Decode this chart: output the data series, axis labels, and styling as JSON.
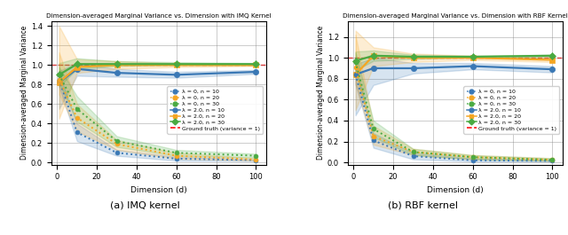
{
  "dims": [
    1,
    10,
    30,
    60,
    100
  ],
  "imq": {
    "title": "Dimension-averaged Marginal Variance vs. Dimension with IMQ Kernel",
    "lambda0_n10_mean": [
      0.85,
      0.31,
      0.1,
      0.04,
      0.025
    ],
    "lambda0_n10_lo": [
      0.78,
      0.22,
      0.07,
      0.02,
      0.015
    ],
    "lambda0_n10_hi": [
      0.92,
      0.4,
      0.13,
      0.06,
      0.035
    ],
    "lambda0_n20_mean": [
      0.85,
      0.46,
      0.19,
      0.07,
      0.03
    ],
    "lambda0_n20_lo": [
      0.7,
      0.32,
      0.13,
      0.04,
      0.02
    ],
    "lambda0_n20_hi": [
      1.13,
      0.6,
      0.23,
      0.1,
      0.045
    ],
    "lambda0_n30_mean": [
      0.9,
      0.55,
      0.22,
      0.1,
      0.07
    ],
    "lambda0_n30_lo": [
      0.82,
      0.42,
      0.16,
      0.07,
      0.05
    ],
    "lambda0_n30_hi": [
      0.98,
      0.68,
      0.27,
      0.13,
      0.09
    ],
    "lambda2_n10_mean": [
      0.82,
      0.96,
      0.92,
      0.9,
      0.93
    ],
    "lambda2_n10_lo": [
      0.55,
      0.89,
      0.88,
      0.87,
      0.91
    ],
    "lambda2_n10_hi": [
      0.94,
      1.02,
      0.96,
      0.93,
      0.95
    ],
    "lambda2_n20_mean": [
      0.82,
      0.98,
      1.0,
      1.0,
      1.0
    ],
    "lambda2_n20_lo": [
      0.45,
      0.92,
      0.96,
      0.98,
      0.99
    ],
    "lambda2_n20_hi": [
      1.4,
      1.06,
      1.04,
      1.02,
      1.01
    ],
    "lambda2_n30_mean": [
      0.9,
      1.01,
      1.01,
      1.01,
      1.01
    ],
    "lambda2_n30_lo": [
      0.78,
      0.96,
      0.99,
      1.0,
      1.0
    ],
    "lambda2_n30_hi": [
      1.02,
      1.07,
      1.04,
      1.03,
      1.02
    ]
  },
  "rbf": {
    "title": "Dimension-averaged Marginal Variance vs. Dimension with RBF Kernel",
    "lambda0_n10_mean": [
      0.84,
      0.21,
      0.06,
      0.02,
      0.015
    ],
    "lambda0_n10_lo": [
      0.75,
      0.14,
      0.03,
      0.01,
      0.008
    ],
    "lambda0_n10_hi": [
      0.92,
      0.28,
      0.09,
      0.04,
      0.025
    ],
    "lambda0_n20_mean": [
      0.91,
      0.25,
      0.1,
      0.05,
      0.025
    ],
    "lambda0_n20_lo": [
      0.75,
      0.17,
      0.07,
      0.03,
      0.015
    ],
    "lambda0_n20_hi": [
      1.22,
      0.35,
      0.13,
      0.07,
      0.04
    ],
    "lambda0_n30_mean": [
      0.96,
      0.32,
      0.1,
      0.05,
      0.025
    ],
    "lambda0_n30_lo": [
      0.88,
      0.24,
      0.07,
      0.03,
      0.015
    ],
    "lambda0_n30_hi": [
      1.05,
      0.4,
      0.13,
      0.07,
      0.04
    ],
    "lambda2_n10_mean": [
      0.84,
      0.9,
      0.9,
      0.92,
      0.89
    ],
    "lambda2_n10_lo": [
      0.45,
      0.74,
      0.85,
      0.89,
      0.86
    ],
    "lambda2_n10_hi": [
      0.94,
      1.0,
      0.95,
      0.95,
      0.92
    ],
    "lambda2_n20_mean": [
      0.84,
      1.02,
      1.0,
      1.0,
      0.98
    ],
    "lambda2_n20_lo": [
      0.5,
      0.92,
      0.96,
      0.98,
      0.96
    ],
    "lambda2_n20_hi": [
      1.26,
      1.1,
      1.04,
      1.02,
      1.0
    ],
    "lambda2_n30_mean": [
      0.97,
      1.02,
      1.01,
      1.01,
      1.02
    ],
    "lambda2_n30_lo": [
      0.88,
      0.97,
      0.99,
      1.0,
      1.01
    ],
    "lambda2_n30_hi": [
      1.06,
      1.07,
      1.03,
      1.02,
      1.03
    ]
  },
  "color_blue": "#3a78b5",
  "color_orange": "#f5a623",
  "color_green": "#4aaa42",
  "ylabel": "Dimension-averaged Marginal Variance",
  "xlabel": "Dimension (d)",
  "ylim_imq": [
    -0.02,
    1.45
  ],
  "ylim_rbf": [
    -0.02,
    1.35
  ],
  "yticks_imq": [
    0.0,
    0.2,
    0.4,
    0.6,
    0.8,
    1.0,
    1.2,
    1.4
  ],
  "yticks_rbf": [
    0.0,
    0.2,
    0.4,
    0.6,
    0.8,
    1.0,
    1.2
  ],
  "caption_a": "(a) IMQ kernel",
  "caption_b": "(b) RBF kernel",
  "legend_entries": [
    "λ = 0, n = 10",
    "λ = 0, n = 20",
    "λ = 0, n = 30",
    "λ = 2.0, n = 10",
    "λ = 2.0, n = 20",
    "λ = 2.0, n = 30",
    "Ground truth (variance = 1)"
  ]
}
